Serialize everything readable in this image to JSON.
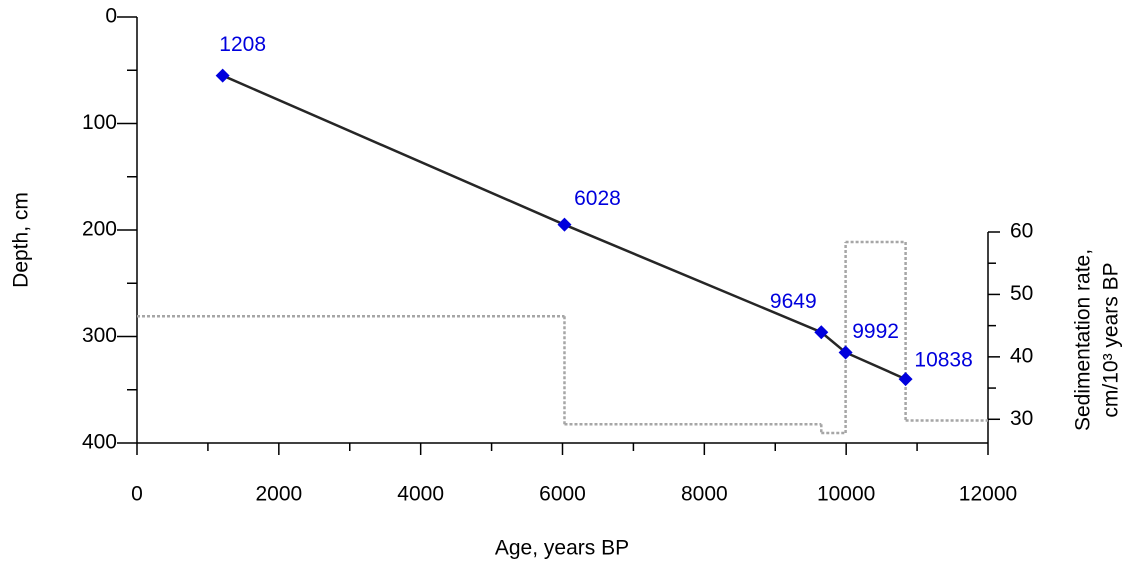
{
  "chart_data": {
    "type": "line",
    "xlabel": "Age, years BP",
    "ylabel": "Depth, cm",
    "y2label": [
      "Sedimentation rate,",
      "cm/10³ years BP"
    ],
    "x": [
      1208,
      6028,
      9649,
      9992,
      10838
    ],
    "series": [
      {
        "color": "#262626",
        "marker_color": "#0000dd",
        "label_color": "#0000dd",
        "values": [
          55,
          195,
          296,
          315,
          340
        ]
      }
    ],
    "rate": {
      "type": "step",
      "axis": "y2",
      "color": "#a6a6a6",
      "bins": [
        0,
        6028,
        9649,
        9992,
        10838,
        12000
      ],
      "values": [
        46.5,
        29.2,
        27.8,
        58.4,
        29.8
      ]
    },
    "xlim": [
      0,
      12000
    ],
    "xticks": [
      0,
      2000,
      4000,
      6000,
      8000,
      10000,
      12000
    ],
    "ylim": [
      0,
      400
    ],
    "yticks": [
      0,
      100,
      200,
      300,
      400
    ],
    "y_inverted": true,
    "y2lim": [
      26.2,
      60
    ],
    "y2ticks": [
      30,
      40,
      50,
      60
    ],
    "grid": false
  }
}
